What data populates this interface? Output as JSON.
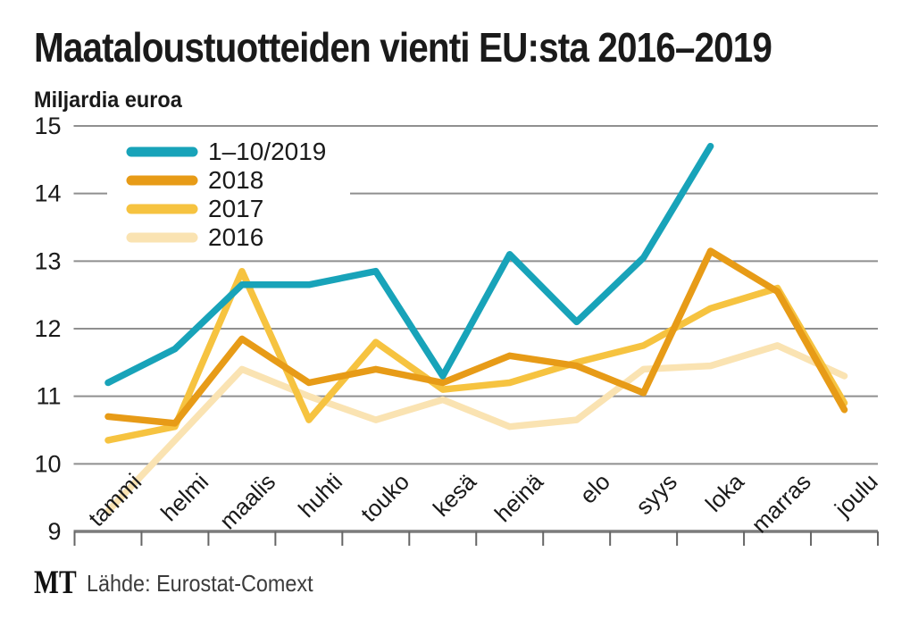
{
  "title": "Maataloustuotteiden vienti EU:sta 2016–2019",
  "footer": {
    "logo": "MT",
    "source": "Lähde: Eurostat-Comext"
  },
  "colors": {
    "series_2019": "#18a3b9",
    "series_2018": "#e79b17",
    "series_2017": "#f6c340",
    "series_2016": "#fae3b2",
    "gridline": "#8f8f8f",
    "axis": "#7c7c7c",
    "text": "#1a1a1a",
    "source_text": "#3c3c3c"
  },
  "chart_data": {
    "type": "line",
    "title": "Maataloustuotteiden vienti EU:sta 2016–2019",
    "ylabel": "Miljardia euroa",
    "xlabel": "",
    "ylim": [
      9,
      15
    ],
    "yticks": [
      9,
      10,
      11,
      12,
      13,
      14,
      15
    ],
    "grid": true,
    "legend_position": "upper-left",
    "categories": [
      "tammi",
      "helmi",
      "maalis",
      "huhti",
      "touko",
      "kesä",
      "heinä",
      "elo",
      "syys",
      "loka",
      "marras",
      "joulu"
    ],
    "series": [
      {
        "name": "1–10/2019",
        "color": "#18a3b9",
        "values": [
          11.2,
          11.7,
          12.65,
          12.65,
          12.85,
          11.3,
          13.1,
          12.1,
          13.05,
          14.7,
          null,
          null
        ]
      },
      {
        "name": "2018",
        "color": "#e79b17",
        "values": [
          10.7,
          10.6,
          11.85,
          11.2,
          11.4,
          11.2,
          11.6,
          11.45,
          11.05,
          13.15,
          12.55,
          10.8
        ]
      },
      {
        "name": "2017",
        "color": "#f6c340",
        "values": [
          10.35,
          10.55,
          12.85,
          10.65,
          11.8,
          11.1,
          11.2,
          11.5,
          11.75,
          12.3,
          12.6,
          10.9
        ]
      },
      {
        "name": "2016",
        "color": "#fae3b2",
        "values": [
          9.3,
          10.35,
          11.4,
          11.0,
          10.65,
          10.95,
          10.55,
          10.65,
          11.4,
          11.45,
          11.75,
          11.3
        ]
      }
    ]
  }
}
